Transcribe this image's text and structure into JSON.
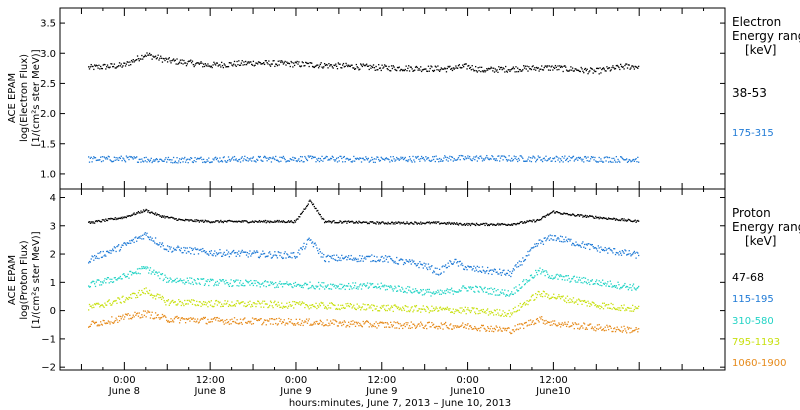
{
  "chart_data": [
    {
      "type": "scatter",
      "title": "",
      "ylabel_lines": [
        "ACE EPAM",
        "log(Electron Flux)",
        "[1/(cm²s ster MeV)]"
      ],
      "ylim": [
        0.75,
        3.75
      ],
      "yticks": [
        1.0,
        1.5,
        2.0,
        2.5,
        3.0,
        3.5
      ],
      "ytick_labels": [
        "1.0",
        "1.5",
        "2.0",
        "2.5",
        "3.0",
        "3.5"
      ],
      "legend_title_lines": [
        "Electron",
        "Energy ranges",
        "[keV]"
      ],
      "series": [
        {
          "name": "38-53",
          "color": "#000000",
          "x": [
            -5,
            0,
            3,
            6,
            12,
            18,
            24,
            36,
            45,
            48,
            50,
            54,
            60,
            66,
            70,
            72
          ],
          "y": [
            2.76,
            2.8,
            2.98,
            2.88,
            2.8,
            2.84,
            2.82,
            2.76,
            2.74,
            2.78,
            2.72,
            2.74,
            2.76,
            2.7,
            2.78,
            2.78
          ]
        },
        {
          "name": "175-315",
          "color": "#1f7ad6",
          "x": [
            -5,
            0,
            6,
            12,
            24,
            36,
            48,
            60,
            72
          ],
          "y": [
            1.24,
            1.25,
            1.23,
            1.24,
            1.25,
            1.24,
            1.26,
            1.25,
            1.24
          ]
        }
      ]
    },
    {
      "type": "scatter",
      "title": "",
      "ylabel_lines": [
        "ACE EPAM",
        "log(Proton Flux)",
        "[1/(cm²s ster MeV)]"
      ],
      "ylim": [
        -2.1,
        4.3
      ],
      "yticks": [
        -2,
        -1,
        0,
        1,
        2,
        3,
        4
      ],
      "ytick_labels": [
        "−2",
        "−1",
        "0",
        "1",
        "2",
        "3",
        "4"
      ],
      "legend_title_lines": [
        "Proton",
        "Energy ranges",
        "[keV]"
      ],
      "series": [
        {
          "name": "47-68",
          "color": "#000000",
          "x": [
            -5,
            0,
            3,
            5,
            8,
            12,
            18,
            24,
            26,
            28,
            36,
            44,
            48,
            54,
            58,
            60,
            62,
            66,
            72
          ],
          "y": [
            3.1,
            3.3,
            3.55,
            3.35,
            3.2,
            3.15,
            3.15,
            3.15,
            3.9,
            3.15,
            3.1,
            3.1,
            3.05,
            3.05,
            3.2,
            3.5,
            3.4,
            3.3,
            3.15
          ]
        },
        {
          "name": "115-195",
          "color": "#1f7ad6",
          "x": [
            -5,
            0,
            3,
            6,
            12,
            18,
            24,
            26,
            28,
            36,
            42,
            44,
            46,
            48,
            54,
            58,
            60,
            66,
            72
          ],
          "y": [
            1.8,
            2.3,
            2.7,
            2.2,
            2.05,
            2.0,
            1.95,
            2.5,
            1.85,
            1.85,
            1.6,
            1.35,
            1.75,
            1.5,
            1.3,
            2.4,
            2.6,
            2.2,
            1.95
          ]
        },
        {
          "name": "310-580",
          "color": "#22d3c5",
          "x": [
            -5,
            0,
            3,
            6,
            12,
            18,
            24,
            36,
            44,
            48,
            54,
            58,
            60,
            66,
            72
          ],
          "y": [
            0.9,
            1.2,
            1.5,
            1.1,
            1.0,
            0.95,
            0.9,
            0.85,
            0.6,
            0.8,
            0.6,
            1.4,
            1.2,
            1.0,
            0.8
          ]
        },
        {
          "name": "795-1193",
          "color": "#c8e010",
          "x": [
            -5,
            0,
            3,
            6,
            12,
            24,
            36,
            48,
            54,
            58,
            60,
            66,
            72
          ],
          "y": [
            0.1,
            0.4,
            0.7,
            0.3,
            0.25,
            0.2,
            0.1,
            0.0,
            -0.1,
            0.6,
            0.5,
            0.2,
            0.05
          ]
        },
        {
          "name": "1060-1900",
          "color": "#e68a1a",
          "x": [
            -5,
            0,
            3,
            6,
            12,
            24,
            36,
            48,
            54,
            58,
            60,
            66,
            72
          ],
          "y": [
            -0.5,
            -0.25,
            -0.1,
            -0.3,
            -0.35,
            -0.4,
            -0.5,
            -0.55,
            -0.7,
            -0.3,
            -0.45,
            -0.6,
            -0.7
          ]
        }
      ]
    }
  ],
  "x_axis": {
    "range": [
      -9,
      84
    ],
    "ticks": [
      {
        "hour": 0,
        "line1": "0:00",
        "line2": "June 8"
      },
      {
        "hour": 12,
        "line1": "12:00",
        "line2": "June 8"
      },
      {
        "hour": 24,
        "line1": "0:00",
        "line2": "June 9"
      },
      {
        "hour": 36,
        "line1": "12:00",
        "line2": "June 9"
      },
      {
        "hour": 48,
        "line1": "0:00",
        "line2": "June10"
      },
      {
        "hour": 60,
        "line1": "12:00",
        "line2": "June10"
      }
    ],
    "label": "hours:minutes, June  7, 2013 – June 10, 2013"
  }
}
